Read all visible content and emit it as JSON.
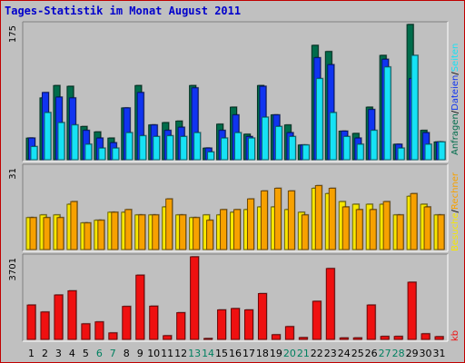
{
  "title": "Tages-Statistik im Monat August 2011",
  "colors": {
    "anfragen": "#006c4b",
    "dateien": "#1034f0",
    "seiten": "#16e2f5",
    "besuche": "#f7e700",
    "rechner": "#f7a100",
    "kb": "#ef1010",
    "weekend_label": "#008060",
    "weekday_label": "#000000"
  },
  "chart_data": [
    {
      "type": "bar",
      "title": "Anfragen / Dateien / Seiten",
      "ymax_label": "175",
      "ylim": [
        0,
        175
      ],
      "categories": [
        "1",
        "2",
        "3",
        "4",
        "5",
        "6",
        "7",
        "8",
        "9",
        "10",
        "11",
        "12",
        "13",
        "14",
        "15",
        "16",
        "17",
        "18",
        "19",
        "20",
        "21",
        "22",
        "23",
        "24",
        "25",
        "26",
        "27",
        "28",
        "29",
        "30",
        "31"
      ],
      "series": [
        {
          "name": "Anfragen",
          "values": [
            28,
            80,
            96,
            95,
            43,
            36,
            28,
            67,
            96,
            45,
            48,
            50,
            96,
            15,
            46,
            68,
            33,
            96,
            58,
            45,
            19,
            148,
            140,
            37,
            34,
            68,
            135,
            20,
            175,
            38,
            23
          ]
        },
        {
          "name": "Dateien",
          "values": [
            28,
            87,
            81,
            80,
            38,
            28,
            22,
            67,
            87,
            45,
            38,
            42,
            93,
            15,
            38,
            58,
            30,
            95,
            58,
            35,
            19,
            132,
            123,
            37,
            28,
            65,
            130,
            20,
            105,
            35,
            23
          ]
        },
        {
          "name": "Seiten",
          "values": [
            17,
            61,
            48,
            45,
            20,
            15,
            15,
            35,
            31,
            30,
            31,
            30,
            35,
            10,
            28,
            35,
            28,
            55,
            43,
            30,
            19,
            105,
            61,
            30,
            20,
            38,
            120,
            15,
            135,
            20,
            23
          ]
        }
      ]
    },
    {
      "type": "bar",
      "title": "Besuche / Rechner",
      "ymax_label": "31",
      "ylim": [
        0,
        31
      ],
      "categories": [
        "1",
        "2",
        "3",
        "4",
        "5",
        "6",
        "7",
        "8",
        "9",
        "10",
        "11",
        "12",
        "13",
        "14",
        "15",
        "16",
        "17",
        "18",
        "19",
        "20",
        "21",
        "22",
        "23",
        "24",
        "25",
        "26",
        "27",
        "28",
        "29",
        "30",
        "31"
      ],
      "series": [
        {
          "name": "Besuche",
          "values": [
            12,
            13,
            13,
            17,
            10,
            11,
            14,
            14,
            13,
            13,
            16,
            13,
            12,
            13,
            13,
            14,
            15,
            16,
            16,
            15,
            14,
            23,
            21,
            18,
            17,
            17,
            17,
            13,
            20,
            17,
            13
          ]
        },
        {
          "name": "Rechner",
          "values": [
            12,
            12,
            12,
            18,
            10,
            11,
            14,
            15,
            13,
            13,
            19,
            13,
            12,
            11,
            15,
            15,
            19,
            22,
            23,
            22,
            13,
            24,
            23,
            16,
            15,
            15,
            18,
            13,
            21,
            16,
            13
          ]
        }
      ]
    },
    {
      "type": "bar",
      "title": "kb",
      "ymax_label": "3701",
      "ylim": [
        0,
        3701
      ],
      "categories": [
        "1",
        "2",
        "3",
        "4",
        "5",
        "6",
        "7",
        "8",
        "9",
        "10",
        "11",
        "12",
        "13",
        "14",
        "15",
        "16",
        "17",
        "18",
        "19",
        "20",
        "21",
        "22",
        "23",
        "24",
        "25",
        "26",
        "27",
        "28",
        "29",
        "30",
        "31"
      ],
      "series": [
        {
          "name": "kb",
          "values": [
            1540,
            1228,
            1990,
            2177,
            697,
            785,
            291,
            1478,
            2878,
            1490,
            166,
            1197,
            3701,
            38,
            1323,
            1383,
            1322,
            2054,
            210,
            574,
            82,
            1708,
            3177,
            67,
            69,
            1540,
            135,
            135,
            2562,
            252,
            123
          ]
        }
      ]
    }
  ],
  "day_labels": [
    {
      "day": "1",
      "weekend": false
    },
    {
      "day": "2",
      "weekend": false
    },
    {
      "day": "3",
      "weekend": false
    },
    {
      "day": "4",
      "weekend": false
    },
    {
      "day": "5",
      "weekend": false
    },
    {
      "day": "6",
      "weekend": true
    },
    {
      "day": "7",
      "weekend": true
    },
    {
      "day": "8",
      "weekend": false
    },
    {
      "day": "9",
      "weekend": false
    },
    {
      "day": "10",
      "weekend": false
    },
    {
      "day": "11",
      "weekend": false
    },
    {
      "day": "12",
      "weekend": false
    },
    {
      "day": "13",
      "weekend": true
    },
    {
      "day": "14",
      "weekend": true
    },
    {
      "day": "15",
      "weekend": false
    },
    {
      "day": "16",
      "weekend": false
    },
    {
      "day": "17",
      "weekend": false
    },
    {
      "day": "18",
      "weekend": false
    },
    {
      "day": "19",
      "weekend": false
    },
    {
      "day": "20",
      "weekend": true
    },
    {
      "day": "21",
      "weekend": true
    },
    {
      "day": "22",
      "weekend": false
    },
    {
      "day": "23",
      "weekend": false
    },
    {
      "day": "24",
      "weekend": false
    },
    {
      "day": "25",
      "weekend": false
    },
    {
      "day": "26",
      "weekend": false
    },
    {
      "day": "27",
      "weekend": true
    },
    {
      "day": "28",
      "weekend": true
    },
    {
      "day": "29",
      "weekend": false
    },
    {
      "day": "30",
      "weekend": false
    },
    {
      "day": "31",
      "weekend": false
    }
  ],
  "legend": {
    "top": [
      "Anfragen",
      "/",
      "Dateien",
      "/",
      "Seiten"
    ],
    "middle": [
      "Besuche",
      "/",
      "Rechner"
    ],
    "bottom": [
      "kb"
    ]
  }
}
